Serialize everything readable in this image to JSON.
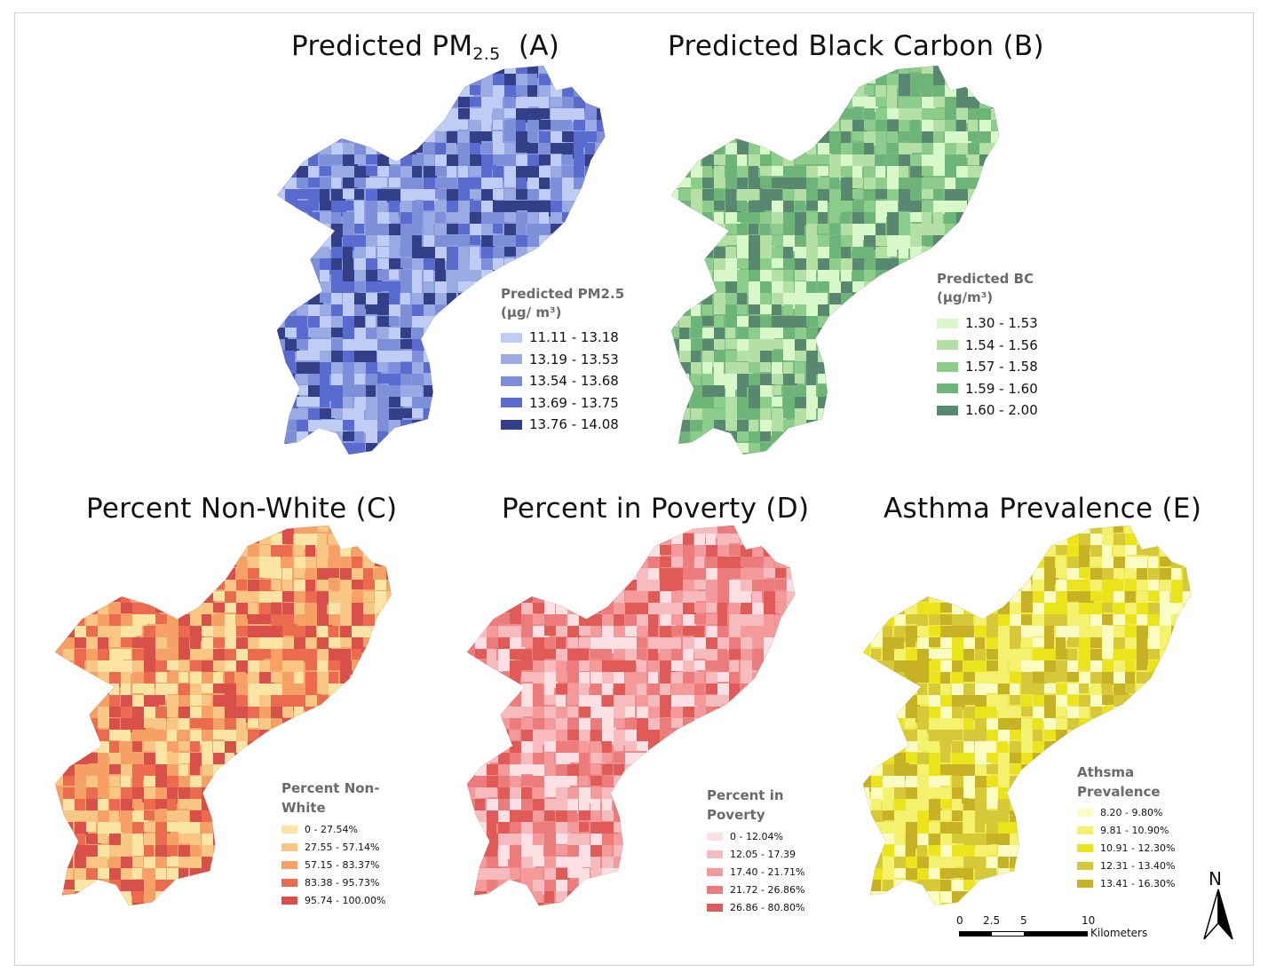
{
  "panels": {
    "a": {
      "title_main": "Predicted PM",
      "title_sub": "2.5",
      "title_tail": "  (A)",
      "legend_title": "Predicted PM2.5 (μg/ m³)",
      "classes": [
        "11.11 - 13.18",
        "13.19 - 13.53",
        "13.54 - 13.68",
        "13.69 - 13.75",
        "13.76 - 14.08"
      ],
      "colors": [
        "#bfcdf5",
        "#9aaae3",
        "#7c8fd8",
        "#5a6bcf",
        "#333f87"
      ],
      "base_color": "#8b9ce0"
    },
    "b": {
      "title": "Predicted Black Carbon (B)",
      "legend_title": "Predicted BC (μg/m³)",
      "classes": [
        "1.30 - 1.53",
        "1.54 - 1.56",
        "1.57 - 1.58",
        "1.59 - 1.60",
        "1.60 - 2.00"
      ],
      "colors": [
        "#d9f8c9",
        "#b5e0a5",
        "#8ccd8c",
        "#6db478",
        "#58886f"
      ],
      "base_color": "#7cba84"
    },
    "c": {
      "title": "Percent Non-White (C)",
      "legend_title": "Percent Non- White",
      "classes": [
        "0 - 27.54%",
        "27.55 - 57.14%",
        "57.15 - 83.37%",
        "83.38 - 95.73%",
        "95.74 - 100.00%"
      ],
      "colors": [
        "#fbe4a4",
        "#fac683",
        "#f6a066",
        "#ec6a4d",
        "#d9504a"
      ],
      "base_color": "#f5a56a"
    },
    "d": {
      "title": "Percent in Poverty (D)",
      "legend_title": "Percent in Poverty",
      "classes": [
        "0 - 12.04%",
        "12.05 - 17.39",
        "17.40 - 21.71%",
        "21.72 - 26.86%",
        "26.86 - 80.80%"
      ],
      "colors": [
        "#fde0e4",
        "#f8bbbd",
        "#f49a9b",
        "#ec7b7b",
        "#e05a57"
      ],
      "base_color": "#ee8a8a"
    },
    "e": {
      "title": "Asthma Prevalence (E)",
      "legend_title": "Athsma Prevalence",
      "classes": [
        "8.20 - 9.80%",
        "9.81 - 10.90%",
        "10.91 - 12.30%",
        "12.31 - 13.40%",
        "13.41 - 16.30%"
      ],
      "colors": [
        "#fafcc2",
        "#f4f16e",
        "#ece41a",
        "#d6c837",
        "#c6b224"
      ],
      "base_color": "#eee84f"
    }
  },
  "scale_bar": {
    "labels": [
      "0",
      "2.5",
      "5",
      "10"
    ],
    "unit": "Kilometers"
  },
  "north_arrow": {
    "letter": "N",
    "icon": "north-arrow-icon"
  }
}
